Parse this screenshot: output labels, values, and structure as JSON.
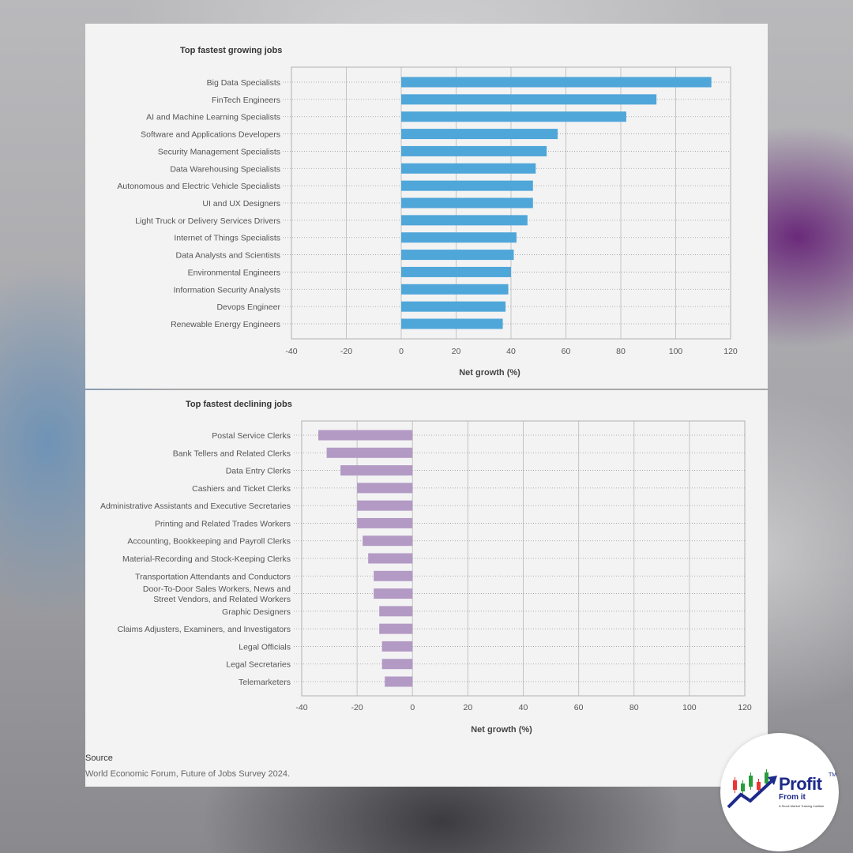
{
  "chart_data": [
    {
      "type": "bar",
      "orientation": "horizontal",
      "title": "Top fastest growing jobs",
      "xlabel": "Net growth (%)",
      "xlim": [
        -40,
        120
      ],
      "xticks": [
        "-40",
        "-20",
        "0",
        "20",
        "40",
        "60",
        "80",
        "100",
        "120"
      ],
      "color": "#4fa6d9",
      "categories": [
        "Big Data Specialists",
        "FinTech Engineers",
        "AI and Machine Learning Specialists",
        "Software and Applications Developers",
        "Security Management Specialists",
        "Data Warehousing Specialists",
        "Autonomous and Electric Vehicle Specialists",
        "UI and UX Designers",
        "Light Truck or Delivery Services Drivers",
        "Internet of Things Specialists",
        "Data Analysts and Scientists",
        "Environmental Engineers",
        "Information Security Analysts",
        "Devops Engineer",
        "Renewable Energy Engineers"
      ],
      "values": [
        113,
        93,
        82,
        57,
        53,
        49,
        48,
        48,
        46,
        42,
        41,
        40,
        39,
        38,
        37
      ],
      "grid": true
    },
    {
      "type": "bar",
      "orientation": "horizontal",
      "title": "Top fastest declining jobs",
      "xlabel": "Net growth (%)",
      "xlim": [
        -40,
        120
      ],
      "xticks": [
        "-40",
        "-20",
        "0",
        "20",
        "40",
        "60",
        "80",
        "100",
        "120"
      ],
      "color": "#b39ac5",
      "categories": [
        [
          "Postal Service Clerks"
        ],
        [
          "Bank Tellers and Related Clerks"
        ],
        [
          "Data Entry Clerks"
        ],
        [
          "Cashiers and Ticket Clerks"
        ],
        [
          "Administrative Assistants and Executive Secretaries"
        ],
        [
          "Printing and Related Trades Workers"
        ],
        [
          "Accounting, Bookkeeping and Payroll Clerks"
        ],
        [
          "Material-Recording and Stock-Keeping Clerks"
        ],
        [
          "Transportation Attendants and Conductors"
        ],
        [
          "Door-To-Door Sales Workers, News and",
          "Street Vendors, and Related Workers"
        ],
        [
          "Graphic Designers"
        ],
        [
          "Claims Adjusters, Examiners, and Investigators"
        ],
        [
          "Legal Officials"
        ],
        [
          "Legal Secretaries"
        ],
        [
          "Telemarketers"
        ]
      ],
      "values": [
        -34,
        -31,
        -26,
        -20,
        -20,
        -20,
        -18,
        -16,
        -14,
        -14,
        -12,
        -12,
        -11,
        -11,
        -10
      ],
      "grid": true
    }
  ],
  "source": {
    "label": "Source",
    "text": "World Economic Forum, Future of Jobs Survey 2024."
  },
  "logo": {
    "title": "Profit",
    "subtitle": "From it",
    "tagline": "A Stock Market Training Institute",
    "trademark": "TM"
  }
}
